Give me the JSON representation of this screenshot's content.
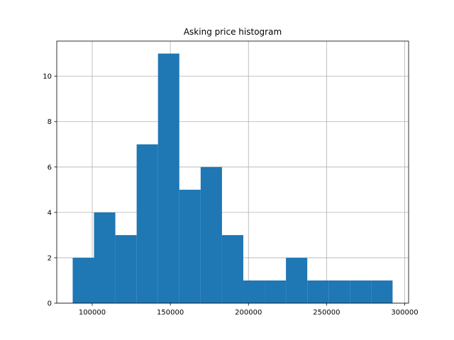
{
  "chart_data": {
    "type": "bar",
    "subtype": "histogram",
    "title": "Asking price histogram",
    "xlabel": "",
    "ylabel": "",
    "bins": [
      {
        "start": 87500,
        "end": 101150,
        "count": 2
      },
      {
        "start": 101150,
        "end": 114800,
        "count": 4
      },
      {
        "start": 114800,
        "end": 128450,
        "count": 3
      },
      {
        "start": 128450,
        "end": 142100,
        "count": 7
      },
      {
        "start": 142100,
        "end": 155750,
        "count": 11
      },
      {
        "start": 155750,
        "end": 169400,
        "count": 5
      },
      {
        "start": 169400,
        "end": 183050,
        "count": 6
      },
      {
        "start": 183050,
        "end": 196700,
        "count": 3
      },
      {
        "start": 196700,
        "end": 210350,
        "count": 1
      },
      {
        "start": 210350,
        "end": 224000,
        "count": 1
      },
      {
        "start": 224000,
        "end": 237650,
        "count": 2
      },
      {
        "start": 237650,
        "end": 251300,
        "count": 1
      },
      {
        "start": 251300,
        "end": 264950,
        "count": 1
      },
      {
        "start": 264950,
        "end": 278600,
        "count": 1
      },
      {
        "start": 278600,
        "end": 292250,
        "count": 1
      }
    ],
    "xlim": [
      77300,
      302500
    ],
    "ylim": [
      0,
      11.55
    ],
    "xticks": [
      100000,
      150000,
      200000,
      250000,
      300000
    ],
    "xtick_labels": [
      "100000",
      "150000",
      "200000",
      "250000",
      "300000"
    ],
    "yticks": [
      0,
      2,
      4,
      6,
      8,
      10
    ],
    "ytick_labels": [
      "0",
      "2",
      "4",
      "6",
      "8",
      "10"
    ],
    "grid": true,
    "bar_color": "#1f77b4",
    "grid_color": "#b0b0b0"
  }
}
